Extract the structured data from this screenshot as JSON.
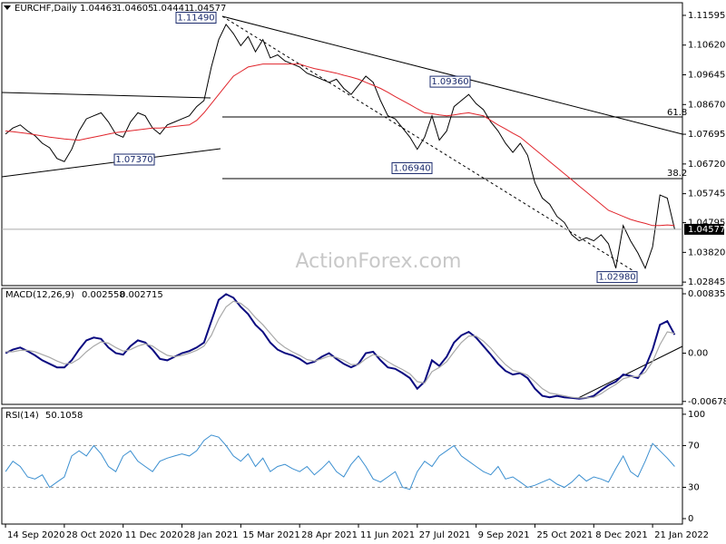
{
  "chart_data": [
    {
      "type": "line",
      "title": "EURCHF,Daily",
      "ohlc": [
        1.04463,
        1.04605,
        1.04441,
        1.04577
      ],
      "ylim": [
        1.0273,
        1.1201
      ],
      "yticks": [
        1.11595,
        {
          "value": 1.1062,
          "label": "1.10620"
        },
        1.09645,
        {
          "value": 1.0867,
          "label": "1.08670"
        },
        1.07695,
        {
          "value": 1.0672,
          "label": "1.06720"
        },
        1.05745,
        1.04795,
        {
          "value": 1.0382,
          "label": "1.03820"
        },
        1.02845
      ],
      "series": [
        {
          "color": "#000000",
          "values": [
            1.077,
            1.079,
            1.08,
            1.078,
            1.0765,
            1.074,
            1.0725,
            1.069,
            1.068,
            1.072,
            1.078,
            1.082,
            1.083,
            1.084,
            1.081,
            1.077,
            1.076,
            1.081,
            1.084,
            1.083,
            1.079,
            1.077,
            1.08,
            1.081,
            1.082,
            1.083,
            1.086,
            1.088,
            1.099,
            1.108,
            1.113,
            1.11,
            1.106,
            1.109,
            1.104,
            1.108,
            1.102,
            1.103,
            1.101,
            1.1,
            1.099,
            1.097,
            1.096,
            1.095,
            1.094,
            1.095,
            1.092,
            1.09,
            1.093,
            1.096,
            1.094,
            1.088,
            1.083,
            1.082,
            1.079,
            1.076,
            1.072,
            1.076,
            1.083,
            1.075,
            1.078,
            1.086,
            1.088,
            1.09,
            1.087,
            1.085,
            1.081,
            1.078,
            1.074,
            1.071,
            1.074,
            1.07,
            1.061,
            1.056,
            1.054,
            1.05,
            1.048,
            1.044,
            1.042,
            1.043,
            1.042,
            1.044,
            1.041,
            1.033,
            1.047,
            1.042,
            1.038,
            1.033,
            1.04,
            1.057,
            1.056,
            1.0458
          ]
        },
        {
          "color": "#e0242b",
          "values": [
            1.078,
            1.0778,
            1.0775,
            1.0772,
            1.0768,
            1.0764,
            1.076,
            1.0757,
            1.0754,
            1.0752,
            1.075,
            1.0755,
            1.076,
            1.0765,
            1.077,
            1.0775,
            1.0778,
            1.0781,
            1.0784,
            1.0787,
            1.079,
            1.079,
            1.0792,
            1.0795,
            1.0798,
            1.08,
            1.0815,
            1.084,
            1.087,
            1.09,
            1.093,
            1.096,
            1.0975,
            1.099,
            1.0995,
            1.1,
            1.1,
            1.1,
            1.1,
            1.1,
            1.1,
            1.0992,
            1.0985,
            1.098,
            1.0975,
            1.097,
            1.0963,
            1.0957,
            1.095,
            1.094,
            1.093,
            1.092,
            1.0907,
            1.0893,
            1.088,
            1.0867,
            1.0853,
            1.084,
            1.0837,
            1.0833,
            1.083,
            1.0833,
            1.0837,
            1.084,
            1.0835,
            1.083,
            1.0815,
            1.08,
            1.0787,
            1.0773,
            1.076,
            1.074,
            1.072,
            1.07,
            1.068,
            1.066,
            1.064,
            1.062,
            1.06,
            1.058,
            1.056,
            1.054,
            1.052,
            1.051,
            1.05,
            1.049,
            1.0483,
            1.0477,
            1.047,
            1.047,
            1.0472,
            1.047
          ]
        }
      ],
      "annotations": [
        {
          "value": 1.1149,
          "label": "1.11490"
        },
        {
          "value": 1.0737,
          "label": "1.07370"
        },
        {
          "value": 1.0694,
          "label": "1.06940"
        },
        {
          "value": 1.0936,
          "label": "1.09360"
        },
        {
          "value": 1.0298,
          "label": "1.02980"
        }
      ],
      "fib_levels": [
        61.8,
        38.2
      ],
      "watermark": "ActionForex.com"
    },
    {
      "type": "line",
      "title": "MACD(12,26,9)",
      "legend_values": [
        0.002558,
        0.002715
      ],
      "ylim": [
        -0.0072,
        0.00912
      ],
      "yticks": [
        0.008353,
        {
          "value": 0,
          "label": "0.00"
        },
        -0.006788
      ],
      "series": [
        {
          "color": "#0a0a80",
          "values": [
            0.0,
            0.0005,
            0.0008,
            0.0003,
            -0.0003,
            -0.001,
            -0.0015,
            -0.002,
            -0.002,
            -0.001,
            0.0005,
            0.0018,
            0.0022,
            0.002,
            0.0008,
            0.0,
            -0.0002,
            0.001,
            0.0018,
            0.0015,
            0.0005,
            -0.0008,
            -0.001,
            -0.0005,
            0.0,
            0.0003,
            0.0008,
            0.0015,
            0.0045,
            0.0075,
            0.0083,
            0.0078,
            0.0065,
            0.0055,
            0.004,
            0.003,
            0.0015,
            0.0005,
            0.0,
            -0.0003,
            -0.0008,
            -0.0015,
            -0.0012,
            -0.0005,
            0.0,
            -0.0008,
            -0.0015,
            -0.002,
            -0.0015,
            0.0,
            0.0002,
            -0.001,
            -0.002,
            -0.0022,
            -0.0028,
            -0.0035,
            -0.005,
            -0.004,
            -0.001,
            -0.0018,
            -0.0005,
            0.0015,
            0.0025,
            0.003,
            0.0022,
            0.001,
            -0.0002,
            -0.0015,
            -0.0025,
            -0.003,
            -0.0028,
            -0.0035,
            -0.005,
            -0.006,
            -0.0062,
            -0.006,
            -0.0062,
            -0.0063,
            -0.0064,
            -0.0063,
            -0.006,
            -0.0052,
            -0.0045,
            -0.004,
            -0.003,
            -0.0032,
            -0.0035,
            -0.002,
            0.0005,
            0.004,
            0.0045,
            0.0026
          ]
        },
        {
          "color": "#a8a8a8",
          "values": [
            0.0002,
            0.0002,
            0.0004,
            0.0004,
            0.0002,
            -0.0002,
            -0.0006,
            -0.0011,
            -0.0015,
            -0.0014,
            -0.0008,
            0.0002,
            0.001,
            0.0016,
            0.0014,
            0.0008,
            0.0003,
            0.0005,
            0.001,
            0.0013,
            0.001,
            0.0003,
            -0.0003,
            -0.0005,
            -0.0003,
            0.0,
            0.0004,
            0.001,
            0.0025,
            0.0048,
            0.0065,
            0.0073,
            0.007,
            0.0062,
            0.005,
            0.004,
            0.0028,
            0.0016,
            0.0008,
            0.0002,
            -0.0003,
            -0.0009,
            -0.0011,
            -0.0008,
            -0.0004,
            -0.0006,
            -0.001,
            -0.0016,
            -0.0016,
            -0.0008,
            -0.0002,
            -0.0005,
            -0.0012,
            -0.0018,
            -0.0023,
            -0.0029,
            -0.004,
            -0.0042,
            -0.0026,
            -0.002,
            -0.0012,
            0.0002,
            0.0015,
            0.0024,
            0.0024,
            0.0017,
            0.0007,
            -0.0005,
            -0.0016,
            -0.0024,
            -0.0027,
            -0.0031,
            -0.004,
            -0.005,
            -0.0056,
            -0.0058,
            -0.006,
            -0.0062,
            -0.0063,
            -0.0063,
            -0.0062,
            -0.0057,
            -0.005,
            -0.0044,
            -0.0036,
            -0.0033,
            -0.0033,
            -0.0027,
            -0.0012,
            0.0012,
            0.003,
            0.0028
          ]
        }
      ]
    },
    {
      "type": "line",
      "title": "RSI(14)",
      "legend_values": [
        50.1058
      ],
      "ylim": [
        -5.2,
        106
      ],
      "yticks": [
        100,
        70,
        30,
        0
      ],
      "dashed_levels": [
        70,
        30
      ],
      "xlim": [
        -0.5,
        92.06
      ],
      "xticks": [
        {
          "value": 0,
          "label": "14 Sep 2020"
        },
        {
          "value": 8,
          "label": "28 Oct 2020"
        },
        {
          "value": 16,
          "label": "11 Dec 2020"
        },
        {
          "value": 24,
          "label": "28 Jan 2021"
        },
        {
          "value": 32,
          "label": "15 Mar 2021"
        },
        {
          "value": 40,
          "label": "28 Apr 2021"
        },
        {
          "value": 48,
          "label": "11 Jun 2021"
        },
        {
          "value": 56,
          "label": "27 Jul 2021"
        },
        {
          "value": 64,
          "label": "9 Sep 2021"
        },
        {
          "value": 72,
          "label": "25 Oct 2021"
        },
        {
          "value": 80,
          "label": "8 Dec 2021"
        },
        {
          "value": 88,
          "label": "21 Jan 2022"
        }
      ],
      "series": [
        {
          "color": "#3b8fd0",
          "values": [
            45,
            55,
            50,
            40,
            38,
            42,
            30,
            35,
            40,
            60,
            65,
            60,
            70,
            62,
            50,
            45,
            60,
            65,
            55,
            50,
            45,
            55,
            58,
            60,
            62,
            60,
            65,
            75,
            80,
            78,
            70,
            60,
            55,
            62,
            50,
            58,
            45,
            50,
            52,
            48,
            45,
            50,
            42,
            48,
            55,
            45,
            40,
            52,
            60,
            50,
            38,
            35,
            40,
            45,
            30,
            28,
            45,
            55,
            50,
            60,
            65,
            70,
            60,
            55,
            50,
            45,
            42,
            50,
            38,
            40,
            35,
            30,
            32,
            35,
            38,
            33,
            30,
            35,
            42,
            36,
            40,
            38,
            35,
            48,
            60,
            45,
            40,
            55,
            72,
            65,
            58,
            50
          ]
        }
      ]
    }
  ]
}
